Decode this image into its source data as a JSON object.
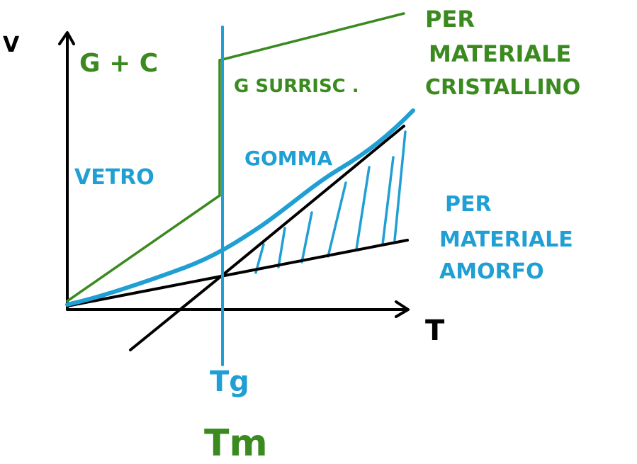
{
  "colors": {
    "green": "#3a8a1f",
    "blue": "#1f9fd4",
    "black": "#000000"
  },
  "axes": {
    "y_label": "V",
    "x_label": "T"
  },
  "labels": {
    "glass_plus_crystal": "G + C",
    "supercooled": "G  SURRISC .",
    "glass": "VETRO",
    "rubber": "GOMMA",
    "crystalline": [
      "PER",
      "MATERIALE",
      "CRISTALLINO"
    ],
    "amorphous": [
      "PER",
      "MATERIALE",
      "AMORFO"
    ],
    "tg": "Tg",
    "tm": "Tm"
  }
}
